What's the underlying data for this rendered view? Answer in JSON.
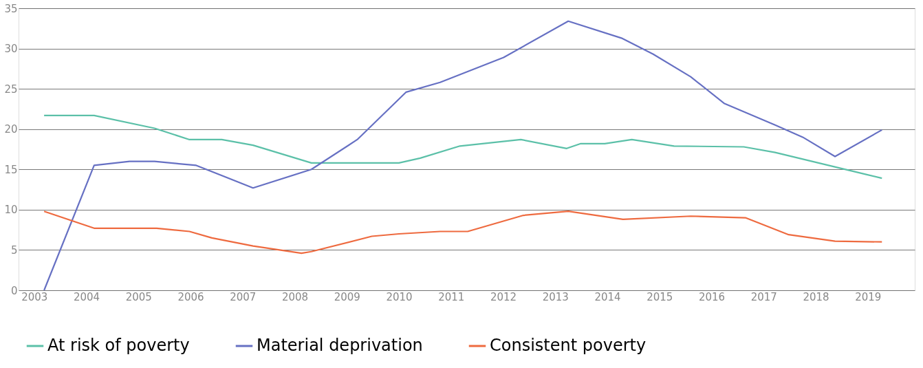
{
  "chart_data": {
    "type": "line",
    "xlim": [
      2002.7,
      2019.9
    ],
    "ylim": [
      0,
      35
    ],
    "xticks": [
      2003,
      2004,
      2005,
      2006,
      2007,
      2008,
      2009,
      2010,
      2011,
      2012,
      2013,
      2014,
      2015,
      2016,
      2017,
      2018,
      2019
    ],
    "yticks": [
      0,
      5,
      10,
      15,
      20,
      25,
      30,
      35
    ],
    "grid": "y",
    "legend": "bottom left",
    "marker": "none",
    "line_style": "solid",
    "series": [
      {
        "name": "At risk of poverty",
        "color": "#5bc0a8",
        "x": [
          2003.19,
          2004.15,
          2005.31,
          2005.98,
          2006.6,
          2007.2,
          2008.32,
          2010.0,
          2010.41,
          2011.17,
          2012.34,
          2013.22,
          2013.49,
          2013.95,
          2014.47,
          2015.28,
          2016.62,
          2017.22,
          2019.27
        ],
        "values": [
          21.7,
          21.7,
          20.1,
          18.7,
          18.7,
          18.0,
          15.8,
          15.8,
          16.4,
          17.9,
          18.7,
          17.6,
          18.2,
          18.2,
          18.7,
          17.9,
          17.8,
          17.1,
          13.9
        ]
      },
      {
        "name": "Material deprivation",
        "color": "#6670c3",
        "x": [
          2003.19,
          2004.15,
          2004.83,
          2005.31,
          2005.78,
          2006.11,
          2007.2,
          2008.32,
          2009.2,
          2010.14,
          2010.79,
          2012.01,
          2013.25,
          2014.27,
          2014.88,
          2015.6,
          2016.24,
          2017.22,
          2017.75,
          2018.37,
          2019.27
        ],
        "values": [
          0,
          15.5,
          16.0,
          16.0,
          15.7,
          15.5,
          12.7,
          15.0,
          18.7,
          24.6,
          25.8,
          28.9,
          33.4,
          31.3,
          29.3,
          26.5,
          23.2,
          20.5,
          19.0,
          16.6,
          19.9
        ]
      },
      {
        "name": "Consistent poverty",
        "color": "#ee6a3f",
        "x": [
          2003.19,
          2004.15,
          2005.35,
          2005.98,
          2006.41,
          2007.2,
          2008.13,
          2008.32,
          2009.48,
          2010.0,
          2010.79,
          2011.32,
          2012.39,
          2013.25,
          2014.3,
          2015.6,
          2016.65,
          2017.48,
          2018.37,
          2019.27
        ],
        "values": [
          9.8,
          7.7,
          7.7,
          7.3,
          6.5,
          5.5,
          4.6,
          4.8,
          6.7,
          7.0,
          7.3,
          7.3,
          9.3,
          9.8,
          8.8,
          9.2,
          9.0,
          6.9,
          6.1,
          6.0
        ]
      }
    ]
  }
}
